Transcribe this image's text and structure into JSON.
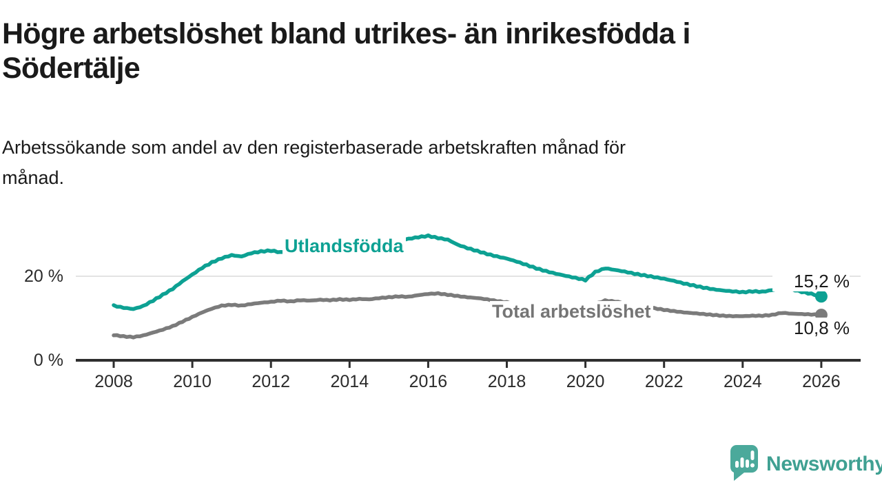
{
  "header": {
    "title": "Högre arbetslöshet bland utrikes- än inrikesfödda i\nSödertälje",
    "subtitle": "Arbetssökande som andel av den registerbaserade arbetskraften månad för\nmånad."
  },
  "chart_data": {
    "type": "line",
    "title": "Högre arbetslöshet bland utrikes- än inrikesfödda i Södertälje",
    "subtitle": "Arbetssökande som andel av den registerbaserade arbetskraften månad för månad.",
    "unit": "%",
    "x_ticks": [
      2008,
      2010,
      2012,
      2014,
      2016,
      2018,
      2020,
      2022,
      2024,
      2026
    ],
    "y_ticks": [
      0,
      20
    ],
    "y_tick_labels": [
      "20 %",
      "0 %"
    ],
    "x_range": [
      2008,
      2026
    ],
    "y_range": [
      0,
      32
    ],
    "grid": "single horizontal gridline at 20 %",
    "legend_position": "inline labels on lines",
    "series": [
      {
        "name": "Utlandsfödda",
        "color": "#0da193",
        "end_label": "15,2 %",
        "end_value": 15.2,
        "points": [
          [
            2008,
            13.0
          ],
          [
            2008.25,
            12.5
          ],
          [
            2008.5,
            12.2
          ],
          [
            2008.75,
            12.9
          ],
          [
            2009,
            14.2
          ],
          [
            2009.25,
            15.6
          ],
          [
            2009.5,
            17.0
          ],
          [
            2009.75,
            18.8
          ],
          [
            2010,
            20.4
          ],
          [
            2010.25,
            22.0
          ],
          [
            2010.5,
            23.3
          ],
          [
            2010.75,
            24.3
          ],
          [
            2011,
            25.0
          ],
          [
            2011.25,
            24.7
          ],
          [
            2011.5,
            25.5
          ],
          [
            2011.75,
            25.9
          ],
          [
            2012,
            26.1
          ],
          [
            2012.25,
            25.7
          ],
          [
            2012.5,
            26.0
          ],
          [
            2012.75,
            26.2
          ],
          [
            2013,
            26.4
          ],
          [
            2013.25,
            26.7
          ],
          [
            2013.5,
            26.5
          ],
          [
            2013.75,
            26.9
          ],
          [
            2014,
            27.1
          ],
          [
            2014.25,
            27.4
          ],
          [
            2014.5,
            27.2
          ],
          [
            2014.75,
            27.7
          ],
          [
            2015,
            28.0
          ],
          [
            2015.25,
            28.5
          ],
          [
            2015.5,
            28.9
          ],
          [
            2015.75,
            29.3
          ],
          [
            2016,
            29.6
          ],
          [
            2016.25,
            29.1
          ],
          [
            2016.5,
            28.7
          ],
          [
            2016.75,
            27.5
          ],
          [
            2017,
            26.7
          ],
          [
            2017.25,
            26.0
          ],
          [
            2017.5,
            25.3
          ],
          [
            2017.75,
            24.7
          ],
          [
            2018,
            24.2
          ],
          [
            2018.25,
            23.5
          ],
          [
            2018.5,
            22.7
          ],
          [
            2018.75,
            21.9
          ],
          [
            2019,
            21.2
          ],
          [
            2019.25,
            20.6
          ],
          [
            2019.5,
            20.1
          ],
          [
            2019.75,
            19.6
          ],
          [
            2020,
            19.1
          ],
          [
            2020.25,
            21.0
          ],
          [
            2020.5,
            21.9
          ],
          [
            2020.75,
            21.5
          ],
          [
            2021,
            21.1
          ],
          [
            2021.25,
            20.6
          ],
          [
            2021.5,
            20.2
          ],
          [
            2021.75,
            19.8
          ],
          [
            2022,
            19.4
          ],
          [
            2022.25,
            18.9
          ],
          [
            2022.5,
            18.3
          ],
          [
            2022.75,
            17.8
          ],
          [
            2023,
            17.3
          ],
          [
            2023.25,
            16.9
          ],
          [
            2023.5,
            16.6
          ],
          [
            2023.75,
            16.4
          ],
          [
            2024,
            16.2
          ],
          [
            2024.25,
            16.4
          ],
          [
            2024.5,
            16.3
          ],
          [
            2024.75,
            16.7
          ],
          [
            2025,
            17.2
          ],
          [
            2025.25,
            16.9
          ],
          [
            2025.5,
            16.3
          ],
          [
            2025.75,
            15.8
          ],
          [
            2026,
            15.2
          ]
        ]
      },
      {
        "name": "Total arbetslöshet",
        "color": "#7b7b7b",
        "end_label": "10,8 %",
        "end_value": 10.8,
        "points": [
          [
            2008,
            6.0
          ],
          [
            2008.25,
            5.7
          ],
          [
            2008.5,
            5.5
          ],
          [
            2008.75,
            5.9
          ],
          [
            2009,
            6.6
          ],
          [
            2009.25,
            7.3
          ],
          [
            2009.5,
            8.1
          ],
          [
            2009.75,
            9.2
          ],
          [
            2010,
            10.3
          ],
          [
            2010.25,
            11.4
          ],
          [
            2010.5,
            12.3
          ],
          [
            2010.75,
            13.0
          ],
          [
            2011,
            13.2
          ],
          [
            2011.25,
            13.0
          ],
          [
            2011.5,
            13.4
          ],
          [
            2011.75,
            13.7
          ],
          [
            2012,
            13.9
          ],
          [
            2012.25,
            14.2
          ],
          [
            2012.5,
            14.0
          ],
          [
            2012.75,
            14.3
          ],
          [
            2013,
            14.2
          ],
          [
            2013.25,
            14.4
          ],
          [
            2013.5,
            14.3
          ],
          [
            2013.75,
            14.5
          ],
          [
            2014,
            14.4
          ],
          [
            2014.25,
            14.6
          ],
          [
            2014.5,
            14.5
          ],
          [
            2014.75,
            14.8
          ],
          [
            2015,
            15.0
          ],
          [
            2015.25,
            15.2
          ],
          [
            2015.5,
            15.1
          ],
          [
            2015.75,
            15.5
          ],
          [
            2016,
            15.8
          ],
          [
            2016.25,
            15.9
          ],
          [
            2016.5,
            15.6
          ],
          [
            2016.75,
            15.3
          ],
          [
            2017,
            15.0
          ],
          [
            2017.25,
            14.8
          ],
          [
            2017.5,
            14.5
          ],
          [
            2017.75,
            14.1
          ],
          [
            2018,
            13.8
          ],
          [
            2018.25,
            13.4
          ],
          [
            2018.5,
            13.1
          ],
          [
            2018.75,
            12.8
          ],
          [
            2019,
            12.5
          ],
          [
            2019.25,
            12.3
          ],
          [
            2019.5,
            12.2
          ],
          [
            2019.75,
            12.1
          ],
          [
            2020,
            12.2
          ],
          [
            2020.25,
            13.4
          ],
          [
            2020.5,
            14.2
          ],
          [
            2020.75,
            14.0
          ],
          [
            2021,
            13.6
          ],
          [
            2021.25,
            13.2
          ],
          [
            2021.5,
            12.8
          ],
          [
            2021.75,
            12.4
          ],
          [
            2022,
            12.0
          ],
          [
            2022.25,
            11.7
          ],
          [
            2022.5,
            11.4
          ],
          [
            2022.75,
            11.2
          ],
          [
            2023,
            11.0
          ],
          [
            2023.25,
            10.8
          ],
          [
            2023.5,
            10.6
          ],
          [
            2023.75,
            10.5
          ],
          [
            2024,
            10.5
          ],
          [
            2024.25,
            10.6
          ],
          [
            2024.5,
            10.6
          ],
          [
            2024.75,
            10.8
          ],
          [
            2025,
            11.3
          ],
          [
            2025.25,
            11.1
          ],
          [
            2025.5,
            11.0
          ],
          [
            2025.75,
            10.9
          ],
          [
            2026,
            10.8
          ]
        ]
      }
    ]
  },
  "branding": {
    "logo_text": "Newsworthy",
    "logo_icon": "speech-bubble-with-bar-chart-and-exclamation",
    "logo_color": "#3fa092",
    "logo_icon_color": "#4ba99b"
  },
  "colors": {
    "background": "#ffffff",
    "title_text": "#1a1a1a",
    "axis_text": "#2b2b2b",
    "axis_line": "#2e2e2e",
    "gridline": "#e3e3e3",
    "series_teal": "#0da193",
    "series_gray": "#7b7b7b"
  }
}
